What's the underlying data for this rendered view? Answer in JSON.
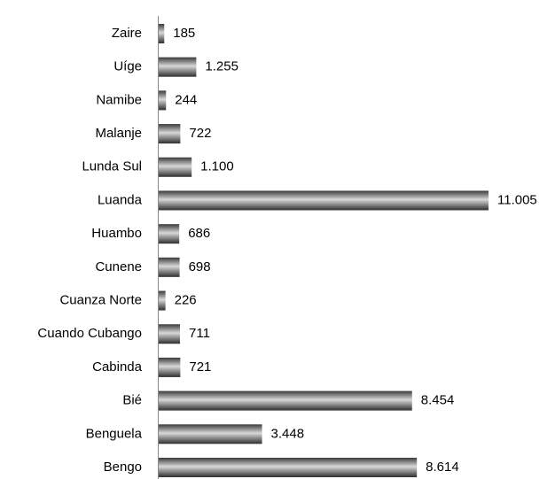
{
  "chart_data": {
    "type": "bar",
    "orientation": "horizontal",
    "categories": [
      "Zaire",
      "Uíge",
      "Namibe",
      "Malanje",
      "Lunda Sul",
      "Luanda",
      "Huambo",
      "Cunene",
      "Cuanza Norte",
      "Cuando Cubango",
      "Cabinda",
      "Bié",
      "Benguela",
      "Bengo"
    ],
    "values": [
      185,
      1255,
      244,
      722,
      1100,
      11005,
      686,
      698,
      226,
      711,
      721,
      8454,
      3448,
      8614
    ],
    "value_labels": [
      "185",
      "1.255",
      "244",
      "722",
      "1.100",
      "11.005",
      "686",
      "698",
      "226",
      "711",
      "721",
      "8.454",
      "3.448",
      "8.614"
    ],
    "color": "#6e6e6e"
  }
}
